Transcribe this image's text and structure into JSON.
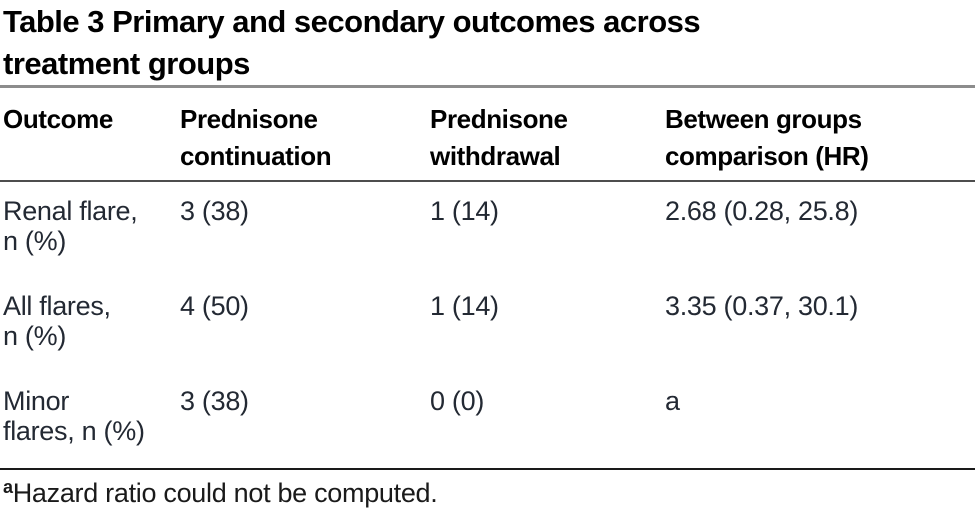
{
  "title": "Table 3 Primary and secondary outcomes across\ntreatment groups",
  "table": {
    "columns": [
      {
        "label": "Outcome"
      },
      {
        "label": "Prednisone\ncontinuation"
      },
      {
        "label": "Prednisone\nwithdrawal"
      },
      {
        "label": "Between groups\ncomparison (HR)"
      }
    ],
    "rows": [
      {
        "outcome": "Renal flare,\nn (%)",
        "continuation": "3 (38)",
        "withdrawal": "1 (14)",
        "comparison": "2.68 (0.28, 25.8)"
      },
      {
        "outcome": "All flares,\nn (%)",
        "continuation": "4 (50)",
        "withdrawal": "1 (14)",
        "comparison": "3.35 (0.37, 30.1)"
      },
      {
        "outcome": "Minor\nflares, n (%)",
        "continuation": "3 (38)",
        "withdrawal": "0 (0)",
        "comparison": "a"
      }
    ]
  },
  "footnote": {
    "marker": "a",
    "text": "Hazard ratio could not be computed."
  },
  "colors": {
    "title_rule": "#8c8c8c",
    "header_rule": "#4d4d4d",
    "bottom_rule": "#1a1a1a",
    "heading_text": "#000000",
    "body_text": "#232933",
    "background": "#ffffff"
  }
}
